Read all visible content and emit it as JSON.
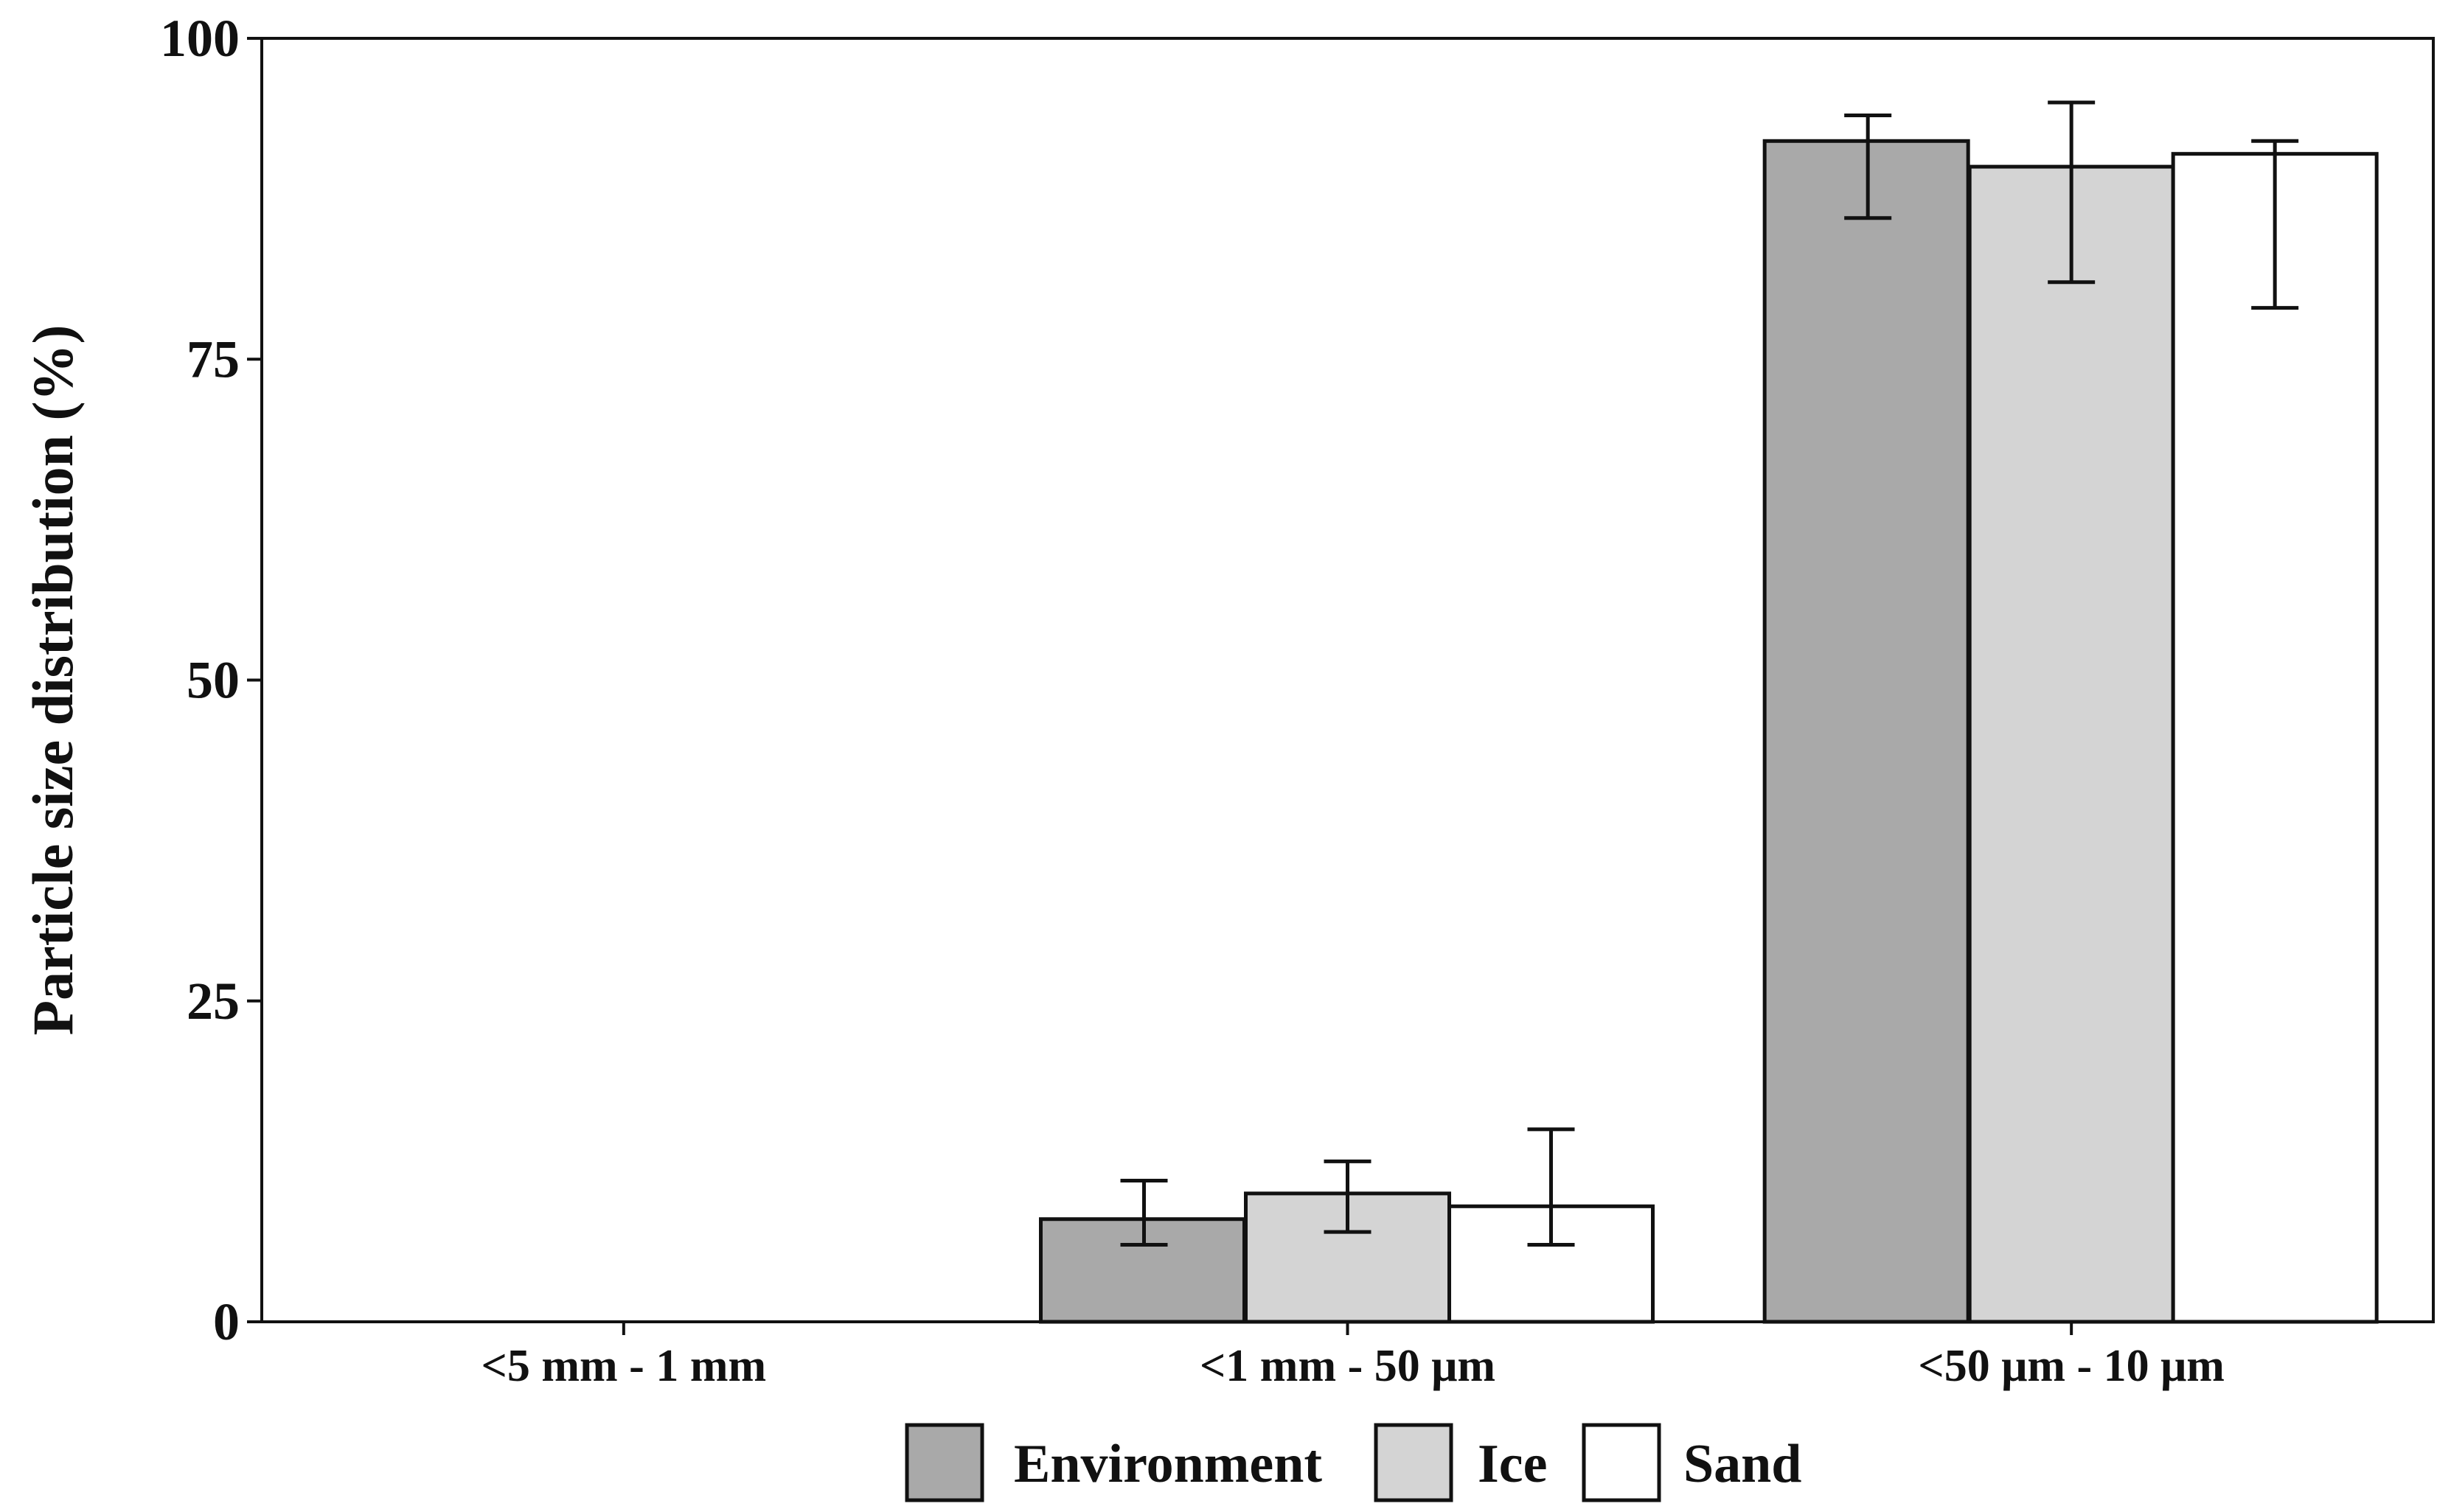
{
  "chart_data": {
    "type": "bar",
    "title": "",
    "xlabel": "",
    "ylabel": "Particle size distribution (%)",
    "ylim": [
      0,
      100
    ],
    "yticks": [
      0,
      25,
      50,
      75,
      100
    ],
    "categories": [
      "<5 mm - 1 mm",
      "<1 mm - 50 μm",
      "<50 μm - 10 μm"
    ],
    "series": [
      {
        "name": "Environment",
        "color": "#a9a9a9",
        "values": [
          0,
          8,
          92
        ],
        "error_low": [
          null,
          6,
          86
        ],
        "error_high": [
          null,
          11,
          94
        ]
      },
      {
        "name": "Ice",
        "color": "#d4d4d4",
        "values": [
          0,
          10,
          90
        ],
        "error_low": [
          null,
          7,
          81
        ],
        "error_high": [
          null,
          12.5,
          95
        ]
      },
      {
        "name": "Sand",
        "color": "#ffffff",
        "values": [
          0,
          9,
          91
        ],
        "error_low": [
          null,
          6,
          79
        ],
        "error_high": [
          null,
          15,
          92
        ]
      }
    ],
    "grid": false,
    "legend_position": "bottom-center"
  }
}
